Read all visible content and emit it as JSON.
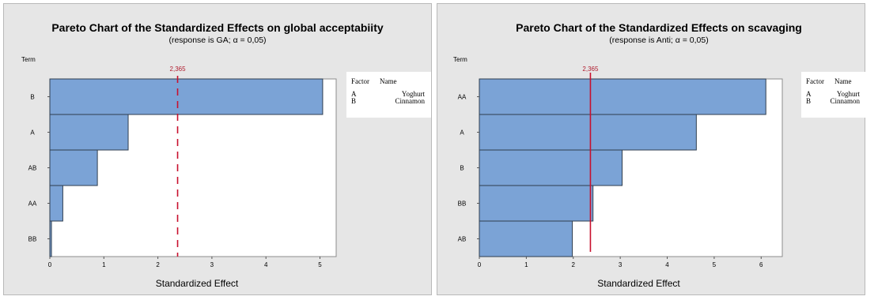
{
  "chart_data": [
    {
      "type": "bar",
      "orientation": "horizontal",
      "title": "Pareto Chart of the Standardized Effects on global acceptabiity",
      "subtitle": "(response is GA; α = 0,05)",
      "xlabel": "Standardized Effect",
      "ylabel": "Term",
      "categories": [
        "B",
        "A",
        "AB",
        "AA",
        "BB"
      ],
      "values": [
        5.05,
        1.45,
        0.88,
        0.24,
        0.03
      ],
      "xlim": [
        0,
        5.3
      ],
      "xticks": [
        "0",
        "1",
        "2",
        "3",
        "4",
        "5"
      ],
      "reference_value": 2.365,
      "reference_label": "2,365",
      "legend_header": [
        "Factor",
        "Name"
      ],
      "legend_rows": [
        [
          "A",
          "Yoghurt"
        ],
        [
          "B",
          "Cinnamon"
        ]
      ],
      "bar_color": "#7ba3d6",
      "reference_color": "#c8102e",
      "grid": false
    },
    {
      "type": "bar",
      "orientation": "horizontal",
      "title": "Pareto Chart of the Standardized Effects on scavaging",
      "subtitle": "(response is Anti; α = 0,05)",
      "xlabel": "Standardized Effect",
      "ylabel": "Term",
      "categories": [
        "AA",
        "A",
        "B",
        "BB",
        "AB"
      ],
      "values": [
        6.1,
        4.62,
        3.04,
        2.42,
        1.98
      ],
      "xlim": [
        0,
        6.45
      ],
      "xticks": [
        "0",
        "1",
        "2",
        "3",
        "4",
        "5",
        "6"
      ],
      "reference_value": 2.365,
      "reference_label": "2,365",
      "legend_header": [
        "Factor",
        "Name"
      ],
      "legend_rows": [
        [
          "A",
          "Yoghurt"
        ],
        [
          "B",
          "Cinnamon"
        ]
      ],
      "bar_color": "#7ba3d6",
      "reference_color": "#c8102e",
      "grid": false
    }
  ]
}
